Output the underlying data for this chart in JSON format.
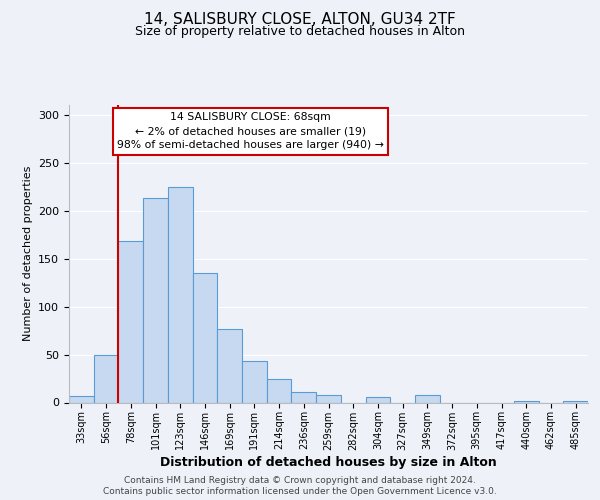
{
  "title": "14, SALISBURY CLOSE, ALTON, GU34 2TF",
  "subtitle": "Size of property relative to detached houses in Alton",
  "xlabel": "Distribution of detached houses by size in Alton",
  "ylabel": "Number of detached properties",
  "bin_labels": [
    "33sqm",
    "56sqm",
    "78sqm",
    "101sqm",
    "123sqm",
    "146sqm",
    "169sqm",
    "191sqm",
    "214sqm",
    "236sqm",
    "259sqm",
    "282sqm",
    "304sqm",
    "327sqm",
    "349sqm",
    "372sqm",
    "395sqm",
    "417sqm",
    "440sqm",
    "462sqm",
    "485sqm"
  ],
  "bar_heights": [
    7,
    50,
    168,
    213,
    225,
    135,
    77,
    43,
    24,
    11,
    8,
    0,
    6,
    0,
    8,
    0,
    0,
    0,
    2,
    0,
    2
  ],
  "bar_color": "#c6d9f0",
  "bar_edge_color": "#5b9bd5",
  "vline_color": "#cc0000",
  "annotation_title": "14 SALISBURY CLOSE: 68sqm",
  "annotation_line1": "← 2% of detached houses are smaller (19)",
  "annotation_line2": "98% of semi-detached houses are larger (940) →",
  "annotation_box_color": "#ffffff",
  "annotation_box_edge": "#cc0000",
  "ylim": [
    0,
    310
  ],
  "yticks": [
    0,
    50,
    100,
    150,
    200,
    250,
    300
  ],
  "footer1": "Contains HM Land Registry data © Crown copyright and database right 2024.",
  "footer2": "Contains public sector information licensed under the Open Government Licence v3.0.",
  "bg_color": "#eef2f8",
  "plot_bg_color": "#eef2f8",
  "grid_color": "#ffffff"
}
